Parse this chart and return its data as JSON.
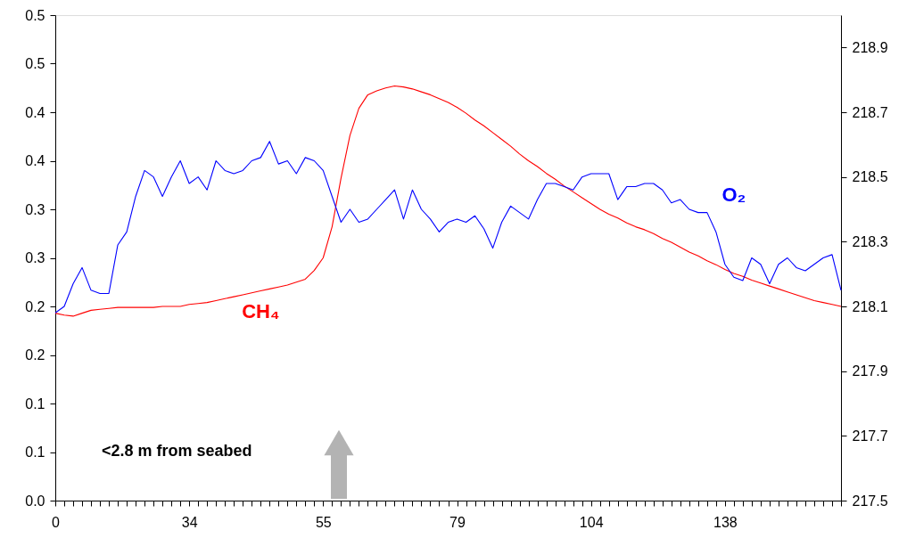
{
  "chart_data": {
    "type": "line",
    "annotations": [
      "<2.8 m from seabed"
    ],
    "categories": [
      "0",
      null,
      null,
      null,
      null,
      null,
      null,
      null,
      null,
      null,
      null,
      null,
      null,
      null,
      null,
      "34",
      null,
      null,
      null,
      null,
      null,
      null,
      null,
      null,
      null,
      null,
      null,
      null,
      null,
      null,
      "55",
      null,
      null,
      null,
      null,
      null,
      null,
      null,
      null,
      null,
      null,
      null,
      null,
      null,
      null,
      "79",
      null,
      null,
      null,
      null,
      null,
      null,
      null,
      null,
      null,
      null,
      null,
      null,
      null,
      null,
      "104",
      null,
      null,
      null,
      null,
      null,
      null,
      null,
      null,
      null,
      null,
      null,
      null,
      null,
      null,
      "138",
      null,
      null,
      null,
      null,
      null,
      null,
      null,
      null,
      null,
      null,
      null,
      null,
      null
    ],
    "ylim": [
      0,
      0.5
    ],
    "yticks": [
      {
        "value": 0,
        "label": "0.0"
      },
      {
        "value": 0.05,
        "label": "0.1"
      },
      {
        "value": 0.1,
        "label": "0.1"
      },
      {
        "value": 0.15,
        "label": "0.2"
      },
      {
        "value": 0.2,
        "label": "0.2"
      },
      {
        "value": 0.25,
        "label": "0.3"
      },
      {
        "value": 0.3,
        "label": "0.3"
      },
      {
        "value": 0.35,
        "label": "0.4"
      },
      {
        "value": 0.4,
        "label": "0.4"
      },
      {
        "value": 0.45,
        "label": "0.5"
      },
      {
        "value": 0.5,
        "label": "0.5"
      }
    ],
    "y2lim": [
      217.5,
      219.0
    ],
    "y2ticks": [
      {
        "value": 217.5,
        "label": "217.5"
      },
      {
        "value": 217.7,
        "label": "217.7"
      },
      {
        "value": 217.9,
        "label": "217.9"
      },
      {
        "value": 218.1,
        "label": "218.1"
      },
      {
        "value": 218.3,
        "label": "218.3"
      },
      {
        "value": 218.5,
        "label": "218.5"
      },
      {
        "value": 218.7,
        "label": "218.7"
      },
      {
        "value": 218.9,
        "label": "218.9"
      }
    ],
    "grid": false,
    "marker": "none",
    "line_style": "solid",
    "series": [
      {
        "name": "CH₄",
        "color": "#ff0000",
        "values": [
          0.193,
          0.191,
          0.19,
          0.193,
          0.196,
          0.197,
          0.198,
          0.199,
          0.199,
          0.199,
          0.199,
          0.199,
          0.2,
          0.2,
          0.2,
          0.202,
          0.203,
          0.204,
          0.206,
          0.208,
          0.21,
          0.212,
          0.214,
          0.216,
          0.218,
          0.22,
          0.222,
          0.225,
          0.228,
          0.237,
          0.25,
          0.282,
          0.332,
          0.376,
          0.404,
          0.418,
          0.422,
          0.425,
          0.427,
          0.426,
          0.424,
          0.421,
          0.418,
          0.414,
          0.41,
          0.405,
          0.399,
          0.392,
          0.386,
          0.379,
          0.372,
          0.365,
          0.357,
          0.35,
          0.344,
          0.337,
          0.331,
          0.324,
          0.318,
          0.312,
          0.306,
          0.3,
          0.295,
          0.291,
          0.286,
          0.282,
          0.279,
          0.275,
          0.27,
          0.266,
          0.261,
          0.256,
          0.252,
          0.247,
          0.243,
          0.238,
          0.234,
          0.231,
          0.227,
          0.224,
          0.221,
          0.218,
          0.215,
          0.212,
          0.209,
          0.206,
          0.204,
          0.202,
          0.2
        ]
      },
      {
        "name": "O₂",
        "color": "#0000ff",
        "axis": "y2",
        "values": [
          218.08,
          218.1,
          218.17,
          218.22,
          218.15,
          218.14,
          218.14,
          218.29,
          218.33,
          218.44,
          218.52,
          218.5,
          218.44,
          218.5,
          218.55,
          218.48,
          218.5,
          218.46,
          218.55,
          218.52,
          218.51,
          218.52,
          218.55,
          218.56,
          218.61,
          218.54,
          218.55,
          218.51,
          218.56,
          218.55,
          218.52,
          218.44,
          218.36,
          218.4,
          218.36,
          218.37,
          218.4,
          218.43,
          218.46,
          218.37,
          218.46,
          218.4,
          218.37,
          218.33,
          218.36,
          218.37,
          218.36,
          218.38,
          218.34,
          218.28,
          218.36,
          218.41,
          218.39,
          218.37,
          218.43,
          218.48,
          218.48,
          218.47,
          218.46,
          218.5,
          218.51,
          218.51,
          218.51,
          218.43,
          218.47,
          218.47,
          218.48,
          218.48,
          218.46,
          218.42,
          218.43,
          218.4,
          218.39,
          218.39,
          218.33,
          218.23,
          218.19,
          218.18,
          218.25,
          218.23,
          218.17,
          218.23,
          218.25,
          218.22,
          218.21,
          218.23,
          218.25,
          218.26,
          218.15
        ]
      }
    ]
  }
}
